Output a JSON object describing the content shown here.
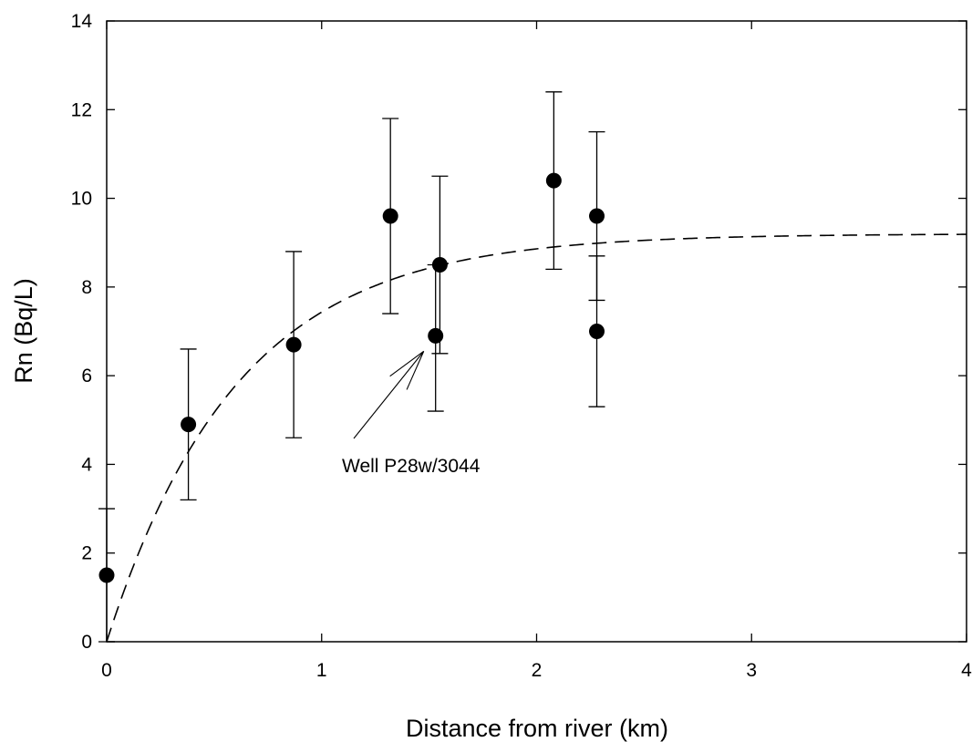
{
  "chart_data": {
    "type": "scatter",
    "title": "",
    "xlabel": "Distance from river (km)",
    "ylabel": "Rn (Bq/L)",
    "xlim": [
      0,
      4
    ],
    "ylim": [
      0,
      14
    ],
    "x_ticks": [
      0,
      1,
      2,
      3,
      4
    ],
    "y_ticks": [
      0,
      2,
      4,
      6,
      8,
      10,
      12,
      14
    ],
    "grid": false,
    "legend": "none",
    "points": [
      {
        "x": 0.0,
        "y": 1.5,
        "err_low": 0.0,
        "err_high": 3.0
      },
      {
        "x": 0.38,
        "y": 4.9,
        "err_low": 3.2,
        "err_high": 6.6
      },
      {
        "x": 0.87,
        "y": 6.7,
        "err_low": 4.6,
        "err_high": 8.8
      },
      {
        "x": 1.32,
        "y": 9.6,
        "err_low": 7.4,
        "err_high": 11.8
      },
      {
        "x": 1.53,
        "y": 6.9,
        "err_low": 5.2,
        "err_high": 8.5
      },
      {
        "x": 1.55,
        "y": 8.5,
        "err_low": 6.5,
        "err_high": 10.5
      },
      {
        "x": 2.08,
        "y": 10.4,
        "err_low": 8.4,
        "err_high": 12.4
      },
      {
        "x": 2.28,
        "y": 9.6,
        "err_low": 7.7,
        "err_high": 11.5
      },
      {
        "x": 2.28,
        "y": 7.0,
        "err_low": 5.3,
        "err_high": 8.7
      }
    ],
    "fit_curve": {
      "style": "dashed",
      "equation": "y = A * (1 - exp(-k * x))",
      "A": 9.2,
      "k": 1.65
    },
    "annotation": {
      "text": "Well P28w/3044",
      "points_to": {
        "x": 1.53,
        "y": 6.9
      }
    },
    "colors": {
      "marker": "#000000",
      "line": "#000000",
      "background": "#ffffff"
    }
  }
}
